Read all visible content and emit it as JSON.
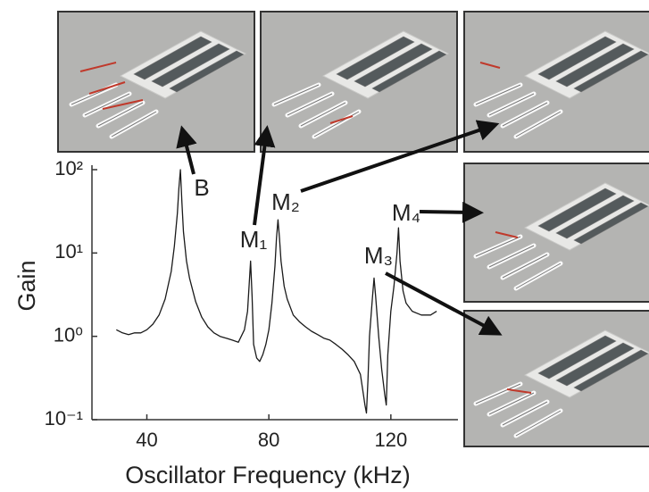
{
  "chart_data": {
    "type": "line",
    "x_label": "Oscillator Frequency (kHz)",
    "y_label": "Gain",
    "log_y": true,
    "xlim": [
      22,
      142
    ],
    "xticks": [
      40,
      80,
      120
    ],
    "ylim": [
      0.1,
      100
    ],
    "yticks": [
      {
        "value": 100,
        "label": "10²"
      },
      {
        "value": 10,
        "label": "10¹"
      },
      {
        "value": 1,
        "label": "10⁰"
      },
      {
        "value": 0.1,
        "label": "10⁻¹"
      }
    ],
    "color": "#1a1a1a",
    "x": [
      30,
      32,
      34,
      36,
      38,
      40,
      42,
      44,
      46,
      48,
      49,
      50,
      50.5,
      51,
      51.5,
      52,
      53,
      54,
      56,
      58,
      60,
      62,
      64,
      66,
      68,
      70,
      72,
      73,
      73.5,
      74,
      74.5,
      75,
      76,
      77,
      78,
      79,
      80,
      81,
      82,
      82.5,
      83,
      83.5,
      84,
      85,
      86,
      88,
      90,
      92,
      94,
      96,
      98,
      100,
      102,
      104,
      106,
      108,
      110,
      111,
      111.5,
      112,
      112.5,
      113,
      114,
      114.5,
      115,
      116,
      117,
      118,
      118.5,
      119,
      120,
      121,
      122,
      122.5,
      123,
      124,
      125,
      127,
      130,
      133,
      135
    ],
    "values": [
      1.2,
      1.1,
      1.05,
      1.1,
      1.1,
      1.2,
      1.4,
      1.8,
      2.8,
      6,
      12,
      30,
      60,
      100,
      40,
      18,
      8,
      5,
      2.6,
      1.7,
      1.3,
      1.1,
      1.0,
      0.95,
      0.9,
      0.85,
      1.2,
      2,
      4,
      8,
      3,
      0.8,
      0.55,
      0.5,
      0.6,
      0.8,
      1.2,
      2.5,
      7,
      15,
      25,
      15,
      8,
      4,
      2.8,
      1.8,
      1.5,
      1.3,
      1.15,
      1.05,
      0.95,
      0.9,
      0.8,
      0.7,
      0.6,
      0.5,
      0.35,
      0.2,
      0.15,
      0.12,
      0.3,
      1,
      3,
      5,
      3,
      1,
      0.4,
      0.2,
      0.15,
      0.6,
      2,
      4,
      10,
      20,
      8,
      3.5,
      2.5,
      2,
      1.8,
      1.8,
      2
    ],
    "annotations": [
      "B",
      "M₁",
      "M₂",
      "M₃",
      "M₄"
    ]
  }
}
